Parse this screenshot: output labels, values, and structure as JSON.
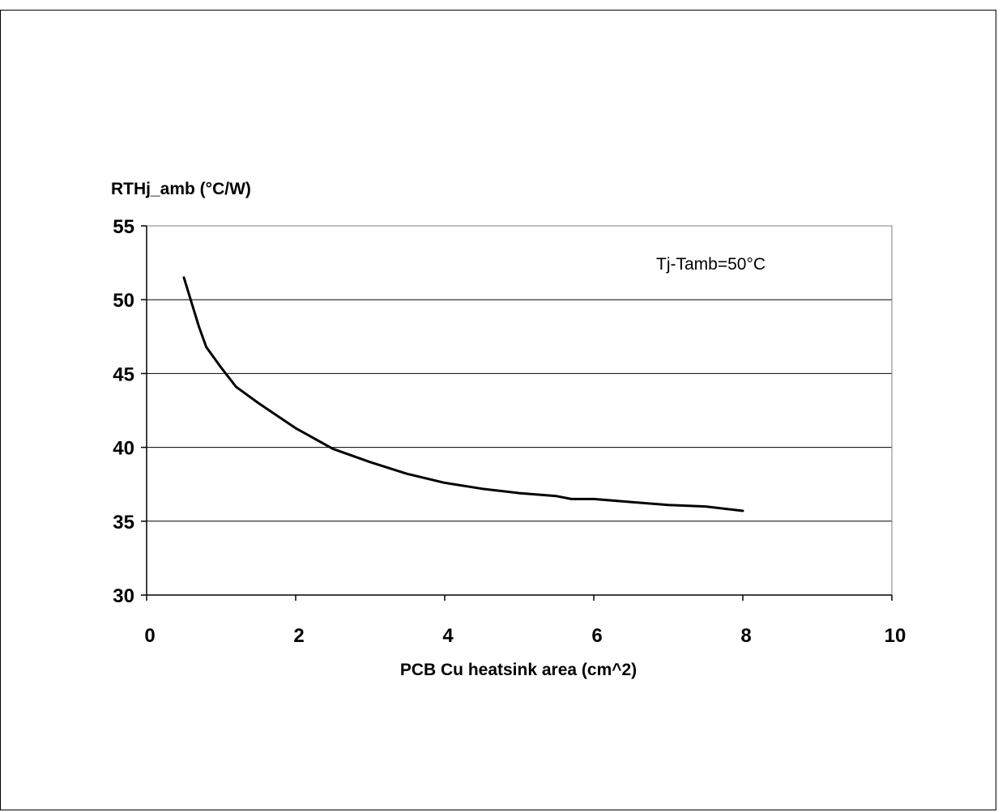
{
  "chart_data": {
    "type": "line",
    "title": "",
    "xlabel": "PCB Cu heatsink area (cm^2)",
    "ylabel": "RTHj_amb (°C/W)",
    "xlim": [
      0,
      10
    ],
    "ylim": [
      30,
      55
    ],
    "x_ticks": [
      0,
      2,
      4,
      6,
      8,
      10
    ],
    "y_ticks": [
      30,
      35,
      40,
      45,
      50,
      55
    ],
    "grid": "horizontal",
    "annotation": "Tj-Tamb=50°C",
    "series": [
      {
        "x": [
          0.5,
          0.7,
          0.8,
          1.0,
          1.2,
          1.5,
          2.0,
          2.5,
          3.0,
          3.5,
          4.0,
          4.5,
          5.0,
          5.5,
          5.7,
          6.0,
          6.5,
          7.0,
          7.5,
          8.0
        ],
        "y": [
          51.5,
          48.2,
          46.8,
          45.4,
          44.1,
          43.0,
          41.3,
          39.9,
          39.0,
          38.2,
          37.6,
          37.2,
          36.9,
          36.7,
          36.5,
          36.5,
          36.3,
          36.1,
          36.0,
          35.7
        ],
        "color": "#000000"
      }
    ]
  }
}
